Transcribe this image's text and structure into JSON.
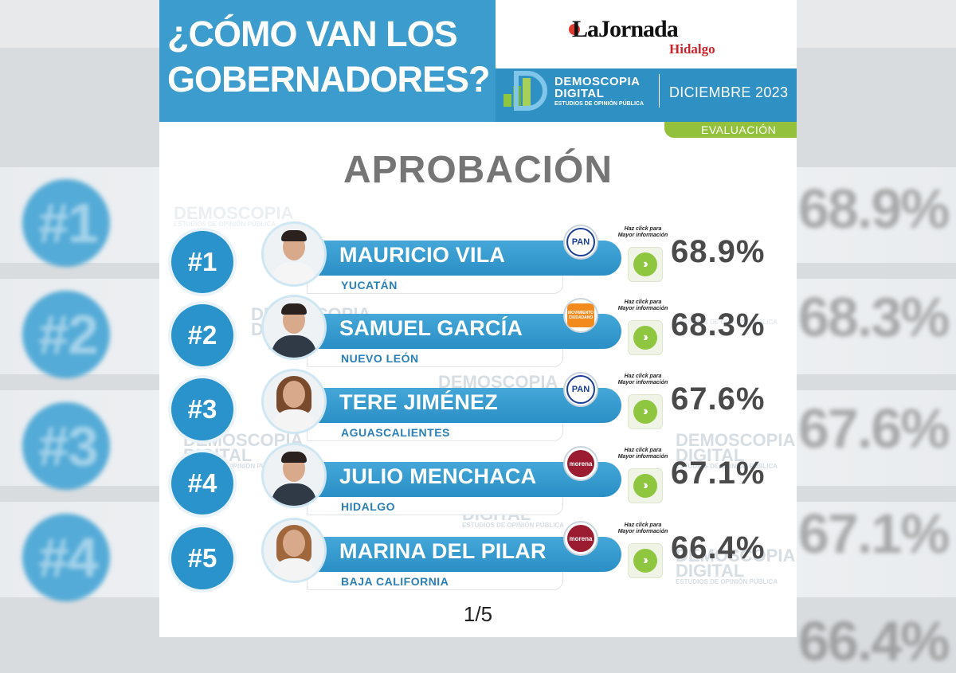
{
  "header": {
    "title_line1": "¿CÓMO VAN LOS",
    "title_line2": "GOBERNADORES?",
    "brand": "LaJornada",
    "brand_sub": "Hidalgo",
    "pollster_line1": "DEMOSCOPIA",
    "pollster_line2": "DIGITAL",
    "pollster_tagline": "ESTUDIOS DE OPINIÓN PÚBLICA",
    "date": "DICIEMBRE 2023",
    "evaluation": "EVALUACIÓN"
  },
  "section_title": "APROBACIÓN",
  "watermark": {
    "line1": "DEMOSCOPIA",
    "line2": "DIGITAL",
    "line3": "ESTUDIOS DE OPINIÓN PÚBLICA"
  },
  "click_hint": {
    "line1": "Haz click para",
    "line2": "Mayor información"
  },
  "governors": [
    {
      "rank": "#1",
      "name": "MAURICIO VILA",
      "state": "YUCATÁN",
      "party": "PAN",
      "approval": "68.9%"
    },
    {
      "rank": "#2",
      "name": "SAMUEL GARCÍA",
      "state": "NUEVO LEÓN",
      "party": "MOVIMIENTO CIUDADANO",
      "approval": "68.3%"
    },
    {
      "rank": "#3",
      "name": "TERE JIMÉNEZ",
      "state": "AGUASCALIENTES",
      "party": "PAN",
      "approval": "67.6%"
    },
    {
      "rank": "#4",
      "name": "JULIO MENCHACA",
      "state": "HIDALGO",
      "party": "morena",
      "approval": "67.1%"
    },
    {
      "rank": "#5",
      "name": "MARINA DEL PILAR",
      "state": "BAJA CALIFORNIA",
      "party": "morena",
      "approval": "66.4%"
    }
  ],
  "background": {
    "left_ranks": [
      "#1",
      "#2",
      "#3",
      "#4"
    ],
    "right_values": [
      "68.9%",
      "68.3%",
      "67.6%",
      "67.1%",
      "66.4%"
    ]
  },
  "pager": "1/5",
  "colors": {
    "primary_blue": "#2a93cc",
    "accent_green": "#8ec63f",
    "pan_blue": "#1c3f94",
    "mc_orange": "#f28a1e",
    "morena_red": "#9b1b30"
  }
}
